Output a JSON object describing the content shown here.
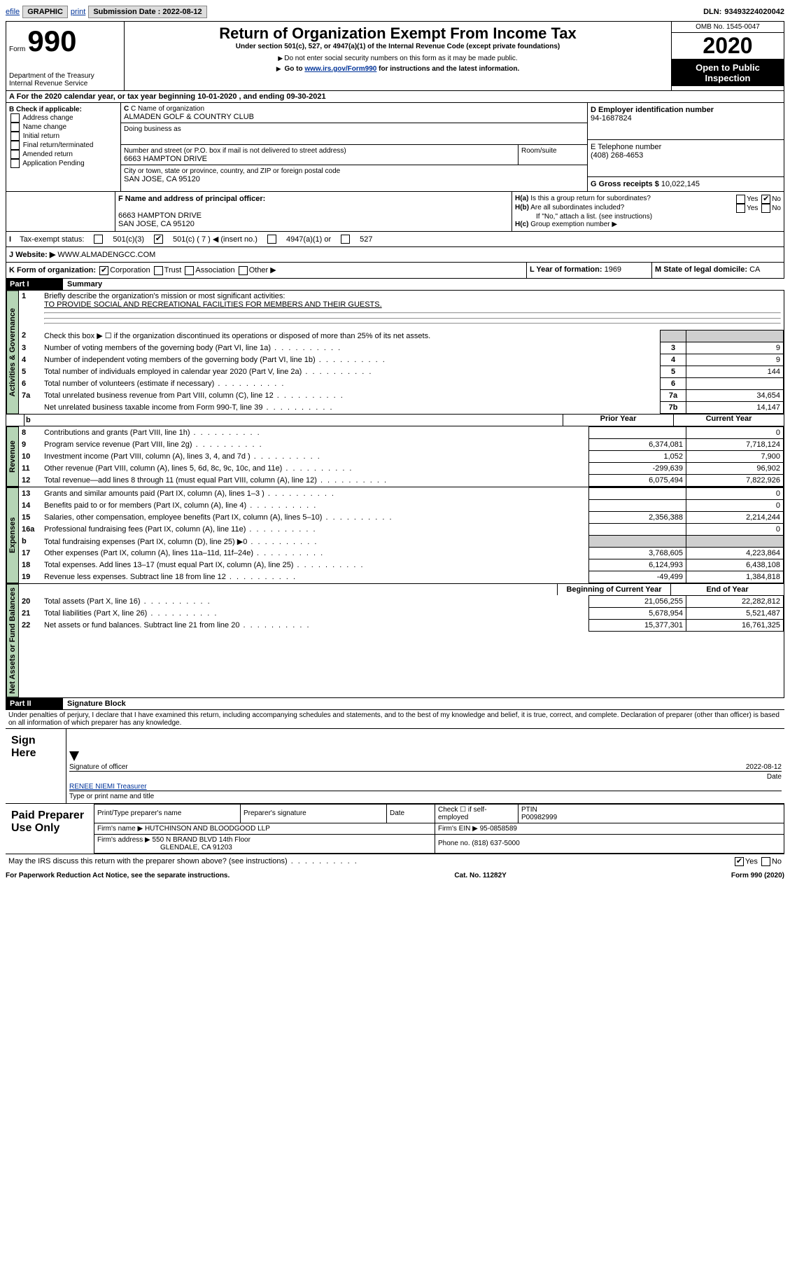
{
  "topbar": {
    "efile": "efile",
    "graphic": "GRAPHIC",
    "print": "print",
    "submission_label": "Submission Date :",
    "submission_date": "2022-08-12",
    "dln_label": "DLN:",
    "dln": "93493224020042"
  },
  "header": {
    "form_label": "Form",
    "form_no": "990",
    "department": "Department of the Treasury\nInternal Revenue Service",
    "title": "Return of Organization Exempt From Income Tax",
    "subtitle": "Under section 501(c), 527, or 4947(a)(1) of the Internal Revenue Code (except private foundations)",
    "note1": "Do not enter social security numbers on this form as it may be made public.",
    "note2_pre": "Go to ",
    "note2_link": "www.irs.gov/Form990",
    "note2_post": " for instructions and the latest information.",
    "omb": "OMB No. 1545-0047",
    "year": "2020",
    "open_public": "Open to Public Inspection"
  },
  "line_a": "For the 2020 calendar year, or tax year beginning 10-01-2020   , and ending 09-30-2021",
  "section_b": {
    "label": "B Check if applicable:",
    "items": [
      "Address change",
      "Name change",
      "Initial return",
      "Final return/terminated",
      "Amended return",
      "Application Pending"
    ]
  },
  "section_c": {
    "name_label": "C Name of organization",
    "name": "ALMADEN GOLF & COUNTRY CLUB",
    "dba_label": "Doing business as",
    "street_label": "Number and street (or P.O. box if mail is not delivered to street address)",
    "room_label": "Room/suite",
    "street": "6663 HAMPTON DRIVE",
    "city_label": "City or town, state or province, country, and ZIP or foreign postal code",
    "city": "SAN JOSE, CA  95120"
  },
  "section_d": {
    "label": "D Employer identification number",
    "value": "94-1687824"
  },
  "section_e": {
    "label": "E Telephone number",
    "value": "(408) 268-4653"
  },
  "section_g": {
    "label": "G Gross receipts $",
    "value": "10,022,145"
  },
  "section_f": {
    "label": "F Name and address of principal officer:",
    "addr1": "6663 HAMPTON DRIVE",
    "addr2": "SAN JOSE, CA  95120"
  },
  "section_h": {
    "a": "Is this a group return for subordinates?",
    "b": "Are all subordinates included?",
    "b_note": "If \"No,\" attach a list. (see instructions)",
    "c": "Group exemption number ▶"
  },
  "section_i": {
    "label": "Tax-exempt status:",
    "opts": [
      "501(c)(3)",
      "501(c) ( 7 ) ◀ (insert no.)",
      "4947(a)(1) or",
      "527"
    ]
  },
  "section_j": {
    "label": "Website: ▶",
    "value": "WWW.ALMADENGCC.COM"
  },
  "section_k": {
    "label": "K Form of organization:",
    "opts": [
      "Corporation",
      "Trust",
      "Association",
      "Other ▶"
    ]
  },
  "section_l": {
    "label": "L Year of formation:",
    "value": "1969"
  },
  "section_m": {
    "label": "M State of legal domicile:",
    "value": "CA"
  },
  "part1": {
    "header": "Part I",
    "title": "Summary",
    "labels": {
      "v_ag": "Activities & Governance",
      "v_rev": "Revenue",
      "v_exp": "Expenses",
      "v_net": "Net Assets or Fund Balances"
    },
    "line1_label": "Briefly describe the organization's mission or most significant activities:",
    "line1_text": "TO PROVIDE SOCIAL AND RECREATIONAL FACILITIES FOR MEMBERS AND THEIR GUESTS.",
    "line2": "Check this box ▶ ☐  if the organization discontinued its operations or disposed of more than 25% of its net assets.",
    "rows_ag": [
      {
        "n": "3",
        "label": "Number of voting members of the governing body (Part VI, line 1a)",
        "box": "3",
        "val": "9"
      },
      {
        "n": "4",
        "label": "Number of independent voting members of the governing body (Part VI, line 1b)",
        "box": "4",
        "val": "9"
      },
      {
        "n": "5",
        "label": "Total number of individuals employed in calendar year 2020 (Part V, line 2a)",
        "box": "5",
        "val": "144"
      },
      {
        "n": "6",
        "label": "Total number of volunteers (estimate if necessary)",
        "box": "6",
        "val": ""
      },
      {
        "n": "7a",
        "label": "Total unrelated business revenue from Part VIII, column (C), line 12",
        "box": "7a",
        "val": "34,654"
      },
      {
        "n": "",
        "label": "Net unrelated business taxable income from Form 990-T, line 39",
        "box": "7b",
        "val": "14,147"
      }
    ],
    "col_headers": {
      "prior": "Prior Year",
      "current": "Current Year",
      "begin": "Beginning of Current Year",
      "end": "End of Year"
    },
    "rows_rev": [
      {
        "n": "8",
        "label": "Contributions and grants (Part VIII, line 1h)",
        "prior": "",
        "cur": "0"
      },
      {
        "n": "9",
        "label": "Program service revenue (Part VIII, line 2g)",
        "prior": "6,374,081",
        "cur": "7,718,124"
      },
      {
        "n": "10",
        "label": "Investment income (Part VIII, column (A), lines 3, 4, and 7d )",
        "prior": "1,052",
        "cur": "7,900"
      },
      {
        "n": "11",
        "label": "Other revenue (Part VIII, column (A), lines 5, 6d, 8c, 9c, 10c, and 11e)",
        "prior": "-299,639",
        "cur": "96,902"
      },
      {
        "n": "12",
        "label": "Total revenue—add lines 8 through 11 (must equal Part VIII, column (A), line 12)",
        "prior": "6,075,494",
        "cur": "7,822,926"
      }
    ],
    "rows_exp": [
      {
        "n": "13",
        "label": "Grants and similar amounts paid (Part IX, column (A), lines 1–3 )",
        "prior": "",
        "cur": "0"
      },
      {
        "n": "14",
        "label": "Benefits paid to or for members (Part IX, column (A), line 4)",
        "prior": "",
        "cur": "0"
      },
      {
        "n": "15",
        "label": "Salaries, other compensation, employee benefits (Part IX, column (A), lines 5–10)",
        "prior": "2,356,388",
        "cur": "2,214,244"
      },
      {
        "n": "16a",
        "label": "Professional fundraising fees (Part IX, column (A), line 11e)",
        "prior": "",
        "cur": "0"
      },
      {
        "n": "b",
        "label": "Total fundraising expenses (Part IX, column (D), line 25) ▶0",
        "prior": "GRAY",
        "cur": "GRAY"
      },
      {
        "n": "17",
        "label": "Other expenses (Part IX, column (A), lines 11a–11d, 11f–24e)",
        "prior": "3,768,605",
        "cur": "4,223,864"
      },
      {
        "n": "18",
        "label": "Total expenses. Add lines 13–17 (must equal Part IX, column (A), line 25)",
        "prior": "6,124,993",
        "cur": "6,438,108"
      },
      {
        "n": "19",
        "label": "Revenue less expenses. Subtract line 18 from line 12",
        "prior": "-49,499",
        "cur": "1,384,818"
      }
    ],
    "rows_net": [
      {
        "n": "20",
        "label": "Total assets (Part X, line 16)",
        "prior": "21,056,255",
        "cur": "22,282,812"
      },
      {
        "n": "21",
        "label": "Total liabilities (Part X, line 26)",
        "prior": "5,678,954",
        "cur": "5,521,487"
      },
      {
        "n": "22",
        "label": "Net assets or fund balances. Subtract line 21 from line 20",
        "prior": "15,377,301",
        "cur": "16,761,325"
      }
    ]
  },
  "part2": {
    "header": "Part II",
    "title": "Signature Block",
    "perjury": "Under penalties of perjury, I declare that I have examined this return, including accompanying schedules and statements, and to the best of my knowledge and belief, it is true, correct, and complete. Declaration of preparer (other than officer) is based on all information of which preparer has any knowledge.",
    "sign_here": "Sign Here",
    "sig_officer": "Signature of officer",
    "sig_date_label": "Date",
    "sig_date": "2022-08-12",
    "officer_name": "RENEE NIEMI Treasurer",
    "type_print": "Type or print name and title",
    "paid_prep": "Paid Preparer Use Only",
    "prep_name_label": "Print/Type preparer's name",
    "prep_sig_label": "Preparer's signature",
    "date_label": "Date",
    "check_self": "Check ☐ if self-employed",
    "ptin_label": "PTIN",
    "ptin": "P00982999",
    "firm_name_label": "Firm's name    ▶",
    "firm_name": "HUTCHINSON AND BLOODGOOD LLP",
    "firm_ein_label": "Firm's EIN ▶",
    "firm_ein": "95-0858589",
    "firm_addr_label": "Firm's address ▶",
    "firm_addr1": "550 N BRAND BLVD 14th Floor",
    "firm_addr2": "GLENDALE, CA  91203",
    "phone_label": "Phone no.",
    "phone": "(818) 637-5000",
    "discuss": "May the IRS discuss this return with the preparer shown above? (see instructions)",
    "yes": "Yes",
    "no": "No"
  },
  "footer": {
    "paperwork": "For Paperwork Reduction Act Notice, see the separate instructions.",
    "catno": "Cat. No. 11282Y",
    "formver": "Form 990 (2020)"
  }
}
